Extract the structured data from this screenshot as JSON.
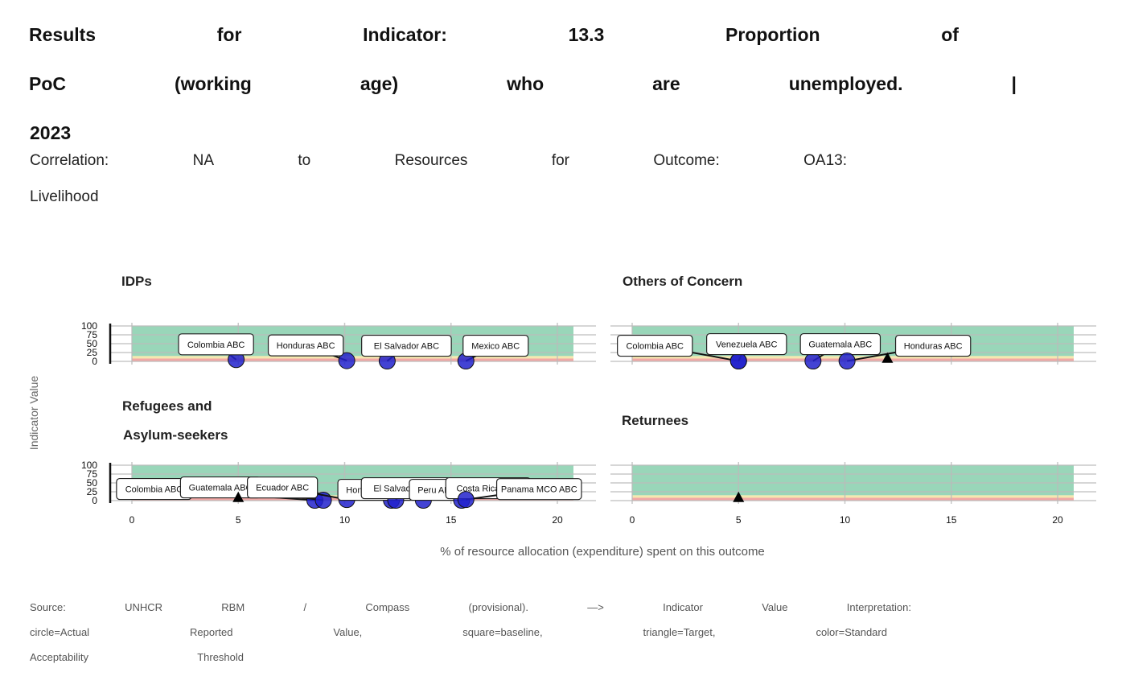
{
  "title": {
    "line1": [
      "Results",
      "for",
      "Indicator:",
      "13.3",
      "Proportion",
      "of"
    ],
    "line2": [
      "PoC",
      "(working",
      "age)",
      "who",
      "are",
      "unemployed.",
      "|"
    ],
    "line3": [
      "2023"
    ]
  },
  "subtitle": {
    "line1": [
      "Correlation:",
      "NA",
      "to",
      "Resources",
      "for",
      "Outcome:",
      "OA13:"
    ],
    "line2": [
      "Livelihood"
    ]
  },
  "caption": {
    "line1": [
      "Source:",
      "UNHCR",
      "RBM",
      "/",
      "Compass",
      "(provisional).",
      "—>",
      "Indicator",
      "Value",
      "Interpretation:"
    ],
    "line2": [
      "circle=Actual",
      "Reported",
      "Value,",
      "square=baseline,",
      "triangle=Target,",
      "color=Standard"
    ],
    "line3": [
      "Acceptability",
      "Threshold"
    ]
  },
  "colors": {
    "band_green": "#99d6b9",
    "band_yellow": "#f5e8b0",
    "band_red": "#f2a8a6",
    "point_fill": "#2222cc",
    "target": "#000000",
    "grid": "#bbbbbb"
  },
  "chart_data": {
    "type": "scatter",
    "xlabel": "% of resource allocation (expenditure) spent on this outcome",
    "ylabel": "Indicator Value",
    "xlim": [
      -1,
      21
    ],
    "ylim": [
      0,
      100
    ],
    "x_ticks": [
      "0",
      "5",
      "10",
      "15",
      "20"
    ],
    "y_ticks": [
      "0",
      "25",
      "50",
      "75",
      "100"
    ],
    "x_tick_values": [
      0,
      5,
      10,
      15,
      20
    ],
    "y_tick_values": [
      0,
      25,
      50,
      75,
      100
    ],
    "grid": true,
    "panels": [
      {
        "title": "IDPs",
        "points": [
          {
            "label": "Colombia ABC",
            "x": 4.9,
            "y": 5,
            "shape": "circle"
          },
          {
            "label": "Honduras ABC",
            "x": 10.1,
            "y": 2,
            "shape": "circle"
          },
          {
            "label": "El Salvador ABC",
            "x": 12.0,
            "y": 1,
            "shape": "circle"
          },
          {
            "label": "Mexico ABC",
            "x": 15.7,
            "y": 1,
            "shape": "circle"
          }
        ],
        "targets": []
      },
      {
        "title": "Others of Concern",
        "points": [
          {
            "label": "Colombia ABC",
            "x": 5.0,
            "y": 1,
            "shape": "circle"
          },
          {
            "label": "Venezuela ABC",
            "x": 5.0,
            "y": 1,
            "shape": "circle"
          },
          {
            "label": "Guatemala ABC",
            "x": 8.5,
            "y": 1,
            "shape": "circle"
          },
          {
            "label": "Honduras ABC",
            "x": 10.1,
            "y": 1,
            "shape": "circle"
          }
        ],
        "targets": [
          {
            "x": 12.0,
            "y": 5
          }
        ]
      },
      {
        "title": "Refugees and Asylum-seekers",
        "points": [
          {
            "label": "Colombia ABC",
            "x": 8.6,
            "y": 1,
            "shape": "circle"
          },
          {
            "label": "Guatemala ABC",
            "x": 9.0,
            "y": 1,
            "shape": "circle"
          },
          {
            "label": "Ecuador ABC",
            "x": 10.1,
            "y": 3,
            "shape": "circle"
          },
          {
            "label": "Honduras ABC",
            "x": 12.2,
            "y": 1,
            "shape": "circle"
          },
          {
            "label": "El Salvador ABC",
            "x": 12.4,
            "y": 1,
            "shape": "circle"
          },
          {
            "label": "Peru ABC",
            "x": 13.7,
            "y": 1,
            "shape": "circle"
          },
          {
            "label": "Costa Rica ABC",
            "x": 15.5,
            "y": 1,
            "shape": "circle"
          },
          {
            "label": "Panama MCO ABC",
            "x": 15.7,
            "y": 3,
            "shape": "circle"
          }
        ],
        "targets": [
          {
            "x": 5.0,
            "y": 5
          }
        ]
      },
      {
        "title": "Returnees",
        "points": [],
        "targets": [
          {
            "x": 5.0,
            "y": 5
          }
        ]
      }
    ]
  }
}
